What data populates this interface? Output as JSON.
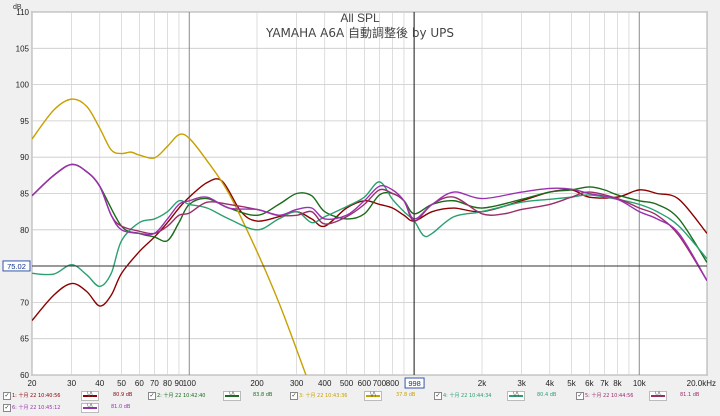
{
  "chart_data": {
    "type": "line",
    "title": "All SPL",
    "subtitle": "YAMAHA A6A 自動調整後 by UPS",
    "ylabel": "dB",
    "xlabel_suffix": "20.0kHz",
    "xscale": "log",
    "xlim": [
      20,
      20000
    ],
    "ylim": [
      60,
      110
    ],
    "y_ticks": [
      60,
      65,
      70,
      75,
      80,
      85,
      90,
      95,
      100,
      105,
      110
    ],
    "y_tick_labels": [
      "60",
      "65",
      "70",
      "75",
      "80",
      "85",
      "90",
      "95",
      "100",
      "105",
      "110"
    ],
    "x_ticks": [
      20,
      30,
      40,
      50,
      60,
      70,
      80,
      90,
      100,
      200,
      300,
      400,
      500,
      600,
      700,
      800,
      2000,
      3000,
      4000,
      5000,
      6000,
      7000,
      8000,
      10000
    ],
    "x_tick_labels": [
      "20",
      "30",
      "40",
      "50",
      "60",
      "70",
      "80",
      "90",
      "100",
      "200",
      "300",
      "400",
      "500",
      "600",
      "700",
      "800",
      "2k",
      "3k",
      "4k",
      "5k",
      "6k",
      "7k",
      "8k",
      "10k"
    ],
    "cursor_x": 998,
    "cursor_x_label": "998",
    "cursor_y": 75.02,
    "cursor_y_label": "75.02",
    "grid": true,
    "series": [
      {
        "name": "1: 十月 22 10:40:56",
        "color": "#8b0000",
        "x": [
          20,
          25,
          30,
          35,
          40,
          45,
          50,
          60,
          70,
          80,
          90,
          100,
          120,
          140,
          170,
          200,
          250,
          300,
          350,
          400,
          500,
          600,
          700,
          800,
          900,
          1000,
          1200,
          1500,
          2000,
          3000,
          4000,
          5000,
          6000,
          8000,
          10000,
          12000,
          15000,
          20000
        ],
        "y": [
          67.5,
          71,
          72.6,
          71.5,
          69.5,
          71,
          74,
          77,
          79,
          81,
          83,
          84.5,
          86.5,
          86.7,
          82.5,
          81.2,
          81.8,
          82.5,
          81.5,
          80.5,
          83,
          84,
          83.5,
          83,
          82,
          81.2,
          82.5,
          83,
          82.5,
          84,
          85.2,
          85.5,
          84.5,
          84.5,
          85.5,
          85,
          84.2,
          79.5
        ]
      },
      {
        "name": "2: 十月 22 10:42:40",
        "color": "#1a6b1a",
        "x": [
          20,
          25,
          30,
          35,
          40,
          50,
          60,
          70,
          80,
          90,
          100,
          120,
          150,
          200,
          250,
          300,
          350,
          400,
          500,
          600,
          700,
          800,
          900,
          1000,
          1200,
          1500,
          2000,
          3000,
          4000,
          5000,
          6000,
          7000,
          8000,
          10000,
          12000,
          15000,
          20000
        ],
        "y": [
          84.7,
          87.5,
          89,
          88,
          86,
          80.5,
          79.5,
          79,
          78.5,
          81,
          83.5,
          84.3,
          83,
          82,
          83.5,
          85,
          84.7,
          82.5,
          81.5,
          82.2,
          84.8,
          85,
          84,
          82.2,
          83.5,
          84,
          83,
          84.2,
          85.2,
          85.5,
          85.9,
          85.5,
          84.8,
          84,
          83.5,
          81.5,
          75.5
        ]
      },
      {
        "name": "3: 十月 22 10:43:36",
        "color": "#c8a000",
        "x": [
          20,
          25,
          30,
          35,
          40,
          45,
          50,
          55,
          60,
          70,
          80,
          90,
          100,
          120,
          150,
          200,
          250,
          300,
          330
        ],
        "y": [
          92.5,
          96.5,
          98,
          97,
          94,
          91,
          90.5,
          90.7,
          90.3,
          89.9,
          91.5,
          93.1,
          92.6,
          89.5,
          85,
          77,
          70,
          63.5,
          60
        ]
      },
      {
        "name": "4: 十月 22 10:44:34",
        "color": "#2aa070",
        "x": [
          20,
          25,
          30,
          35,
          40,
          45,
          50,
          60,
          70,
          80,
          90,
          100,
          120,
          150,
          200,
          250,
          300,
          350,
          400,
          500,
          600,
          700,
          800,
          900,
          1000,
          1100,
          1200,
          1500,
          2000,
          3000,
          4000,
          5000,
          6000,
          8000,
          10000,
          12000,
          15000,
          20000
        ],
        "y": [
          74,
          73.9,
          75.2,
          73.8,
          72.2,
          74,
          78.5,
          81,
          81.5,
          82.5,
          84,
          83.5,
          83,
          81.5,
          80,
          81.5,
          82.5,
          81,
          81.8,
          83.2,
          84.5,
          86.6,
          84.2,
          82.5,
          81.2,
          79.2,
          79.5,
          81.8,
          82.5,
          83.8,
          84.2,
          84.5,
          84.8,
          84.2,
          83.5,
          82.5,
          80.5,
          76
        ]
      },
      {
        "name": "5: 十月 22 10:44:56",
        "color": "#9b2d6b",
        "x": [
          20,
          25,
          30,
          35,
          40,
          45,
          50,
          60,
          70,
          80,
          90,
          100,
          120,
          150,
          200,
          250,
          300,
          350,
          400,
          500,
          600,
          700,
          800,
          900,
          1000,
          1200,
          1500,
          2000,
          2500,
          3000,
          4000,
          5000,
          6000,
          8000,
          10000,
          12000,
          15000,
          20000
        ],
        "y": [
          84.7,
          87.5,
          89,
          88,
          86,
          82,
          80.5,
          79.8,
          79.5,
          80.5,
          82,
          82.3,
          83.8,
          83.5,
          82.8,
          82,
          82,
          82.5,
          80.8,
          81.8,
          83.5,
          85.5,
          85,
          84,
          81.2,
          83.5,
          84.5,
          82.2,
          82.2,
          82.8,
          83.5,
          84.5,
          85.2,
          84.3,
          83,
          82,
          79.2,
          73
        ]
      },
      {
        "name": "6: 十月 22 10:45:12",
        "color": "#9a30b0",
        "x": [
          20,
          25,
          30,
          35,
          40,
          45,
          50,
          60,
          70,
          80,
          90,
          100,
          120,
          150,
          200,
          250,
          300,
          350,
          400,
          500,
          600,
          700,
          800,
          900,
          1000,
          1200,
          1500,
          2000,
          3000,
          4000,
          5000,
          6000,
          8000,
          10000,
          12000,
          15000,
          20000
        ],
        "y": [
          84.7,
          87.5,
          89,
          88,
          86,
          82,
          80,
          79.5,
          79.5,
          81.5,
          83.5,
          84,
          84.5,
          83,
          82.8,
          82,
          82.8,
          83,
          81.5,
          82,
          84,
          86,
          85.5,
          84,
          81.5,
          83.5,
          85.2,
          84.3,
          85.2,
          85.7,
          85.6,
          85,
          84.2,
          82.5,
          81.5,
          79.5,
          73
        ]
      }
    ]
  },
  "legend": [
    {
      "check": "✓",
      "label": "1: 十月 22 10:40:56",
      "value": "80.9 dB",
      "color": "#8b0000"
    },
    {
      "check": "✓",
      "label": "2: 十月 22 10:42:40",
      "value": "83.8 dB",
      "color": "#1a6b1a"
    },
    {
      "check": "✓",
      "label": "3: 十月 22 10:43:36",
      "value": "37.8 dB",
      "color": "#c8a000"
    },
    {
      "check": "✓",
      "label": "4: 十月 22 10:44:34",
      "value": "80.4 dB",
      "color": "#2aa070"
    },
    {
      "check": "✓",
      "label": "5: 十月 22 10:44:56",
      "value": "81.1 dB",
      "color": "#9b2d6b"
    },
    {
      "check": "✓",
      "label": "6: 十月 22 10:45:12",
      "value": "81.0 dB",
      "color": "#9a30b0"
    }
  ],
  "legend_swatch_mark": "\\/\\"
}
